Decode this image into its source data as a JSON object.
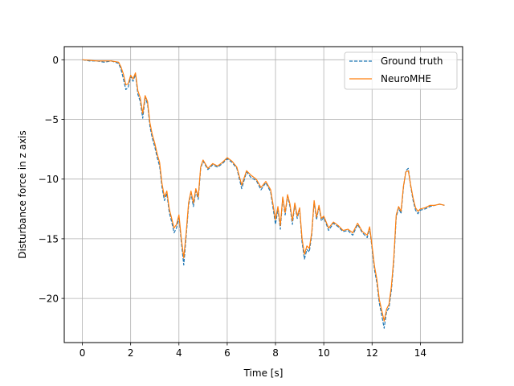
{
  "chart_data": {
    "type": "line",
    "title": "",
    "xlabel": "Time [s]",
    "ylabel": "Disturbance force in z axis",
    "xlim": [
      -0.75,
      15.75
    ],
    "ylim": [
      -23.7,
      1.1
    ],
    "xticks": [
      0,
      2,
      4,
      6,
      8,
      10,
      12,
      14
    ],
    "xtick_labels": [
      "0",
      "2",
      "4",
      "6",
      "8",
      "10",
      "12",
      "14"
    ],
    "yticks": [
      0,
      -5,
      -10,
      -15,
      -20
    ],
    "ytick_labels": [
      "0",
      "−5",
      "−10",
      "−15",
      "−20"
    ],
    "grid": true,
    "legend_position": "top-right",
    "colors": {
      "ground_truth": "#1f77b4",
      "neuromhe": "#ff7f0e",
      "grid": "#b0b0b0"
    },
    "series": [
      {
        "name": "Ground truth",
        "style": "dashed",
        "x": [
          0.0,
          0.3,
          0.6,
          0.9,
          1.2,
          1.5,
          1.6,
          1.7,
          1.8,
          1.9,
          2.0,
          2.1,
          2.2,
          2.3,
          2.4,
          2.5,
          2.6,
          2.7,
          2.8,
          2.9,
          3.0,
          3.1,
          3.2,
          3.3,
          3.4,
          3.5,
          3.6,
          3.7,
          3.8,
          3.9,
          4.0,
          4.1,
          4.2,
          4.3,
          4.4,
          4.5,
          4.6,
          4.7,
          4.8,
          4.9,
          5.0,
          5.2,
          5.4,
          5.6,
          5.8,
          6.0,
          6.2,
          6.4,
          6.6,
          6.8,
          7.0,
          7.2,
          7.4,
          7.6,
          7.8,
          8.0,
          8.1,
          8.2,
          8.3,
          8.4,
          8.5,
          8.6,
          8.7,
          8.8,
          8.9,
          9.0,
          9.1,
          9.2,
          9.3,
          9.4,
          9.5,
          9.6,
          9.7,
          9.8,
          9.9,
          10.0,
          10.2,
          10.4,
          10.6,
          10.8,
          11.0,
          11.2,
          11.4,
          11.6,
          11.8,
          11.9,
          12.0,
          12.1,
          12.2,
          12.3,
          12.4,
          12.5,
          12.6,
          12.7,
          12.8,
          12.9,
          13.0,
          13.1,
          13.2,
          13.3,
          13.4,
          13.5,
          13.6,
          13.7,
          13.8,
          13.9,
          14.0,
          14.2,
          14.4,
          14.6,
          14.8,
          15.0
        ],
        "y": [
          0.0,
          -0.1,
          -0.1,
          -0.2,
          -0.1,
          -0.3,
          -0.8,
          -1.6,
          -2.5,
          -2.3,
          -1.4,
          -1.8,
          -1.2,
          -2.9,
          -3.5,
          -4.9,
          -3.2,
          -3.7,
          -5.6,
          -6.6,
          -7.3,
          -8.2,
          -8.9,
          -10.7,
          -11.8,
          -11.2,
          -12.8,
          -13.6,
          -14.5,
          -14.1,
          -13.2,
          -15.3,
          -17.2,
          -14.8,
          -12.2,
          -11.2,
          -12.3,
          -11.0,
          -11.7,
          -9.1,
          -8.5,
          -9.2,
          -8.8,
          -9.0,
          -8.7,
          -8.3,
          -8.6,
          -9.1,
          -10.8,
          -9.4,
          -9.9,
          -10.1,
          -10.9,
          -10.3,
          -11.1,
          -13.8,
          -12.5,
          -14.2,
          -11.6,
          -13.0,
          -11.4,
          -12.3,
          -13.8,
          -12.1,
          -13.3,
          -12.5,
          -15.3,
          -16.7,
          -15.9,
          -16.1,
          -14.7,
          -11.9,
          -13.4,
          -12.3,
          -13.5,
          -13.2,
          -14.3,
          -13.7,
          -14.0,
          -14.4,
          -14.3,
          -14.7,
          -13.8,
          -14.5,
          -14.9,
          -14.1,
          -15.8,
          -17.6,
          -18.7,
          -20.4,
          -21.4,
          -22.5,
          -21.1,
          -20.8,
          -19.3,
          -16.9,
          -13.2,
          -12.4,
          -12.9,
          -10.7,
          -9.3,
          -9.1,
          -10.6,
          -11.8,
          -12.6,
          -12.9,
          -12.6,
          -12.5,
          -12.3,
          -12.2,
          -12.1,
          -12.2
        ],
        "color": "#1f77b4"
      },
      {
        "name": "NeuroMHE",
        "style": "solid",
        "x": [
          0.0,
          0.3,
          0.6,
          0.9,
          1.2,
          1.5,
          1.6,
          1.7,
          1.8,
          1.9,
          2.0,
          2.1,
          2.2,
          2.3,
          2.4,
          2.5,
          2.6,
          2.7,
          2.8,
          2.9,
          3.0,
          3.1,
          3.2,
          3.3,
          3.4,
          3.5,
          3.6,
          3.7,
          3.8,
          3.9,
          4.0,
          4.1,
          4.2,
          4.3,
          4.4,
          4.5,
          4.6,
          4.7,
          4.8,
          4.9,
          5.0,
          5.2,
          5.4,
          5.6,
          5.8,
          6.0,
          6.2,
          6.4,
          6.6,
          6.8,
          7.0,
          7.2,
          7.4,
          7.6,
          7.8,
          8.0,
          8.1,
          8.2,
          8.3,
          8.4,
          8.5,
          8.6,
          8.7,
          8.8,
          8.9,
          9.0,
          9.1,
          9.2,
          9.3,
          9.4,
          9.5,
          9.6,
          9.7,
          9.8,
          9.9,
          10.0,
          10.2,
          10.4,
          10.6,
          10.8,
          11.0,
          11.2,
          11.4,
          11.6,
          11.8,
          11.9,
          12.0,
          12.1,
          12.2,
          12.3,
          12.4,
          12.5,
          12.6,
          12.7,
          12.8,
          12.9,
          13.0,
          13.1,
          13.2,
          13.3,
          13.4,
          13.5,
          13.6,
          13.7,
          13.8,
          13.9,
          14.0,
          14.2,
          14.4,
          14.6,
          14.8,
          15.0
        ],
        "y": [
          0.0,
          -0.05,
          -0.1,
          -0.1,
          -0.1,
          -0.2,
          -0.6,
          -1.2,
          -2.1,
          -2.0,
          -1.3,
          -1.6,
          -1.1,
          -2.6,
          -3.2,
          -4.5,
          -3.0,
          -3.5,
          -5.3,
          -6.3,
          -7.0,
          -7.9,
          -8.6,
          -10.4,
          -11.5,
          -11.0,
          -12.5,
          -13.3,
          -14.1,
          -13.8,
          -13.0,
          -15.0,
          -16.6,
          -14.5,
          -12.0,
          -11.0,
          -12.0,
          -10.8,
          -11.5,
          -9.0,
          -8.4,
          -9.1,
          -8.7,
          -8.9,
          -8.6,
          -8.2,
          -8.5,
          -9.0,
          -10.5,
          -9.3,
          -9.7,
          -10.0,
          -10.7,
          -10.2,
          -10.9,
          -13.4,
          -12.3,
          -13.9,
          -11.5,
          -12.8,
          -11.3,
          -12.1,
          -13.5,
          -12.0,
          -13.1,
          -12.4,
          -15.0,
          -16.3,
          -15.6,
          -15.8,
          -14.5,
          -11.8,
          -13.2,
          -12.2,
          -13.3,
          -13.1,
          -14.1,
          -13.6,
          -13.9,
          -14.3,
          -14.2,
          -14.5,
          -13.7,
          -14.4,
          -14.7,
          -14.0,
          -15.6,
          -17.3,
          -18.4,
          -20.1,
          -21.0,
          -21.9,
          -20.9,
          -20.5,
          -19.0,
          -16.6,
          -13.0,
          -12.3,
          -12.7,
          -10.6,
          -9.4,
          -9.3,
          -10.5,
          -11.6,
          -12.4,
          -12.7,
          -12.5,
          -12.4,
          -12.2,
          -12.2,
          -12.1,
          -12.2
        ],
        "color": "#ff7f0e"
      }
    ]
  }
}
